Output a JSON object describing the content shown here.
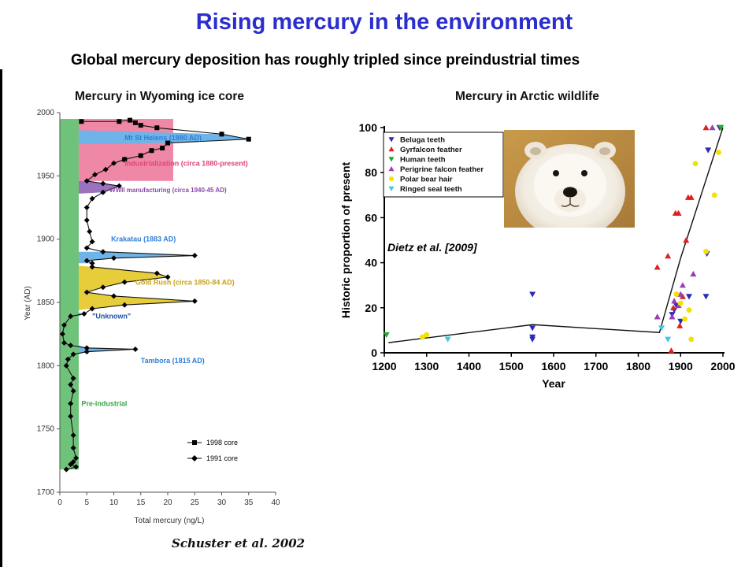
{
  "slide": {
    "title": "Rising mercury in the environment",
    "subtitle": "Global mercury deposition has roughly tripled since preindustrial times",
    "title_color": "#2b2ecf"
  },
  "ice_core": {
    "title": "Mercury in Wyoming ice core",
    "xlabel": "Total mercury (ng/L)",
    "ylabel": "Year (AD)",
    "credit": "Schuster et al. 2002",
    "legend": [
      "1998 core",
      "1991 core"
    ],
    "annotations": [
      {
        "text": "Mt St Helens (1980 AD)",
        "color": "#2f7fd6",
        "year": 1980,
        "x": 12
      },
      {
        "text": "Industrialization (circa 1880-present)",
        "color": "#e0457a",
        "year": 1960,
        "x": 12
      },
      {
        "text": "WWII manufacturing (circa 1940-45 AD)",
        "color": "#8a4aa8",
        "year": 1939,
        "x": 9.2
      },
      {
        "text": "Krakatau (1883 AD)",
        "color": "#2f7fd6",
        "year": 1900,
        "x": 9.5
      },
      {
        "text": "Gold Rush (circa 1850-84 AD)",
        "color": "#c9a316",
        "year": 1866,
        "x": 14
      },
      {
        "text": "\"Unknown\"",
        "color": "#1f4fa0",
        "year": 1839,
        "x": 6
      },
      {
        "text": "Tambora (1815 AD)",
        "color": "#2f7fd6",
        "year": 1804,
        "x": 15
      },
      {
        "text": "Pre-industrial",
        "color": "#3aa34a",
        "year": 1770,
        "x": 4
      }
    ]
  },
  "arctic": {
    "title": "Mercury in Arctic wildlife",
    "credit": "Dietz et al. [2009]"
  },
  "chart_data": [
    {
      "type": "line",
      "title": "Mercury in Wyoming ice core",
      "xlabel": "Total mercury (ng/L)",
      "ylabel": "Year (AD)",
      "xlim": [
        0,
        40
      ],
      "ylim": [
        1700,
        2000
      ],
      "xticks": [
        0,
        5,
        10,
        15,
        20,
        25,
        30,
        35,
        40
      ],
      "yticks": [
        1700,
        1750,
        1800,
        1850,
        1900,
        1950,
        2000
      ],
      "baseline": 3.5,
      "series": [
        {
          "name": "1998 core",
          "points": [
            [
              4,
              1993
            ],
            [
              11,
              1993
            ],
            [
              13,
              1994
            ],
            [
              14,
              1992
            ],
            [
              15,
              1990
            ],
            [
              18,
              1988
            ],
            [
              30,
              1983
            ],
            [
              35,
              1979
            ],
            [
              20,
              1976
            ],
            [
              19,
              1972
            ],
            [
              17,
              1970
            ],
            [
              15,
              1966
            ],
            [
              12,
              1963
            ]
          ]
        },
        {
          "name": "1991 core",
          "points": [
            [
              12,
              1963
            ],
            [
              10,
              1960
            ],
            [
              8.5,
              1955
            ],
            [
              6.5,
              1951
            ],
            [
              5,
              1946
            ],
            [
              8,
              1944
            ],
            [
              11,
              1942
            ],
            [
              8,
              1937
            ],
            [
              6,
              1932
            ],
            [
              5,
              1925
            ],
            [
              5,
              1915
            ],
            [
              5.5,
              1906
            ],
            [
              6,
              1898
            ],
            [
              5,
              1893
            ],
            [
              8,
              1890
            ],
            [
              25,
              1887
            ],
            [
              10,
              1885
            ],
            [
              5,
              1883
            ],
            [
              6,
              1881
            ],
            [
              6,
              1878
            ],
            [
              18,
              1873
            ],
            [
              20,
              1870
            ],
            [
              12,
              1866
            ],
            [
              8,
              1862
            ],
            [
              5,
              1858
            ],
            [
              10,
              1855
            ],
            [
              25,
              1851
            ],
            [
              12,
              1848
            ],
            [
              6,
              1845
            ],
            [
              4.5,
              1841
            ],
            [
              2,
              1839
            ],
            [
              0.8,
              1832
            ],
            [
              0.5,
              1825
            ],
            [
              0.8,
              1818
            ],
            [
              2,
              1816
            ],
            [
              5,
              1814
            ],
            [
              14,
              1813
            ],
            [
              5,
              1811
            ],
            [
              2.5,
              1809
            ],
            [
              1.5,
              1805
            ],
            [
              1.2,
              1800
            ],
            [
              2.5,
              1790
            ],
            [
              2.0,
              1785
            ],
            [
              2.5,
              1780
            ],
            [
              2.0,
              1770
            ],
            [
              2.0,
              1760
            ],
            [
              2.5,
              1745
            ],
            [
              2.5,
              1735
            ],
            [
              3.0,
              1727
            ],
            [
              2.5,
              1724
            ],
            [
              2.0,
              1722
            ],
            [
              3.0,
              1720
            ],
            [
              1.2,
              1718
            ]
          ]
        }
      ]
    },
    {
      "type": "scatter",
      "title": "Mercury in Arctic wildlife",
      "xlabel": "Year",
      "ylabel": "Historic proportion of present",
      "xlim": [
        1200,
        2000
      ],
      "ylim": [
        0,
        100
      ],
      "xticks": [
        1200,
        1300,
        1400,
        1500,
        1600,
        1700,
        1800,
        1900,
        2000
      ],
      "yticks": [
        0,
        20,
        40,
        60,
        80,
        100
      ],
      "trend_line": [
        [
          1210,
          4.5
        ],
        [
          1550,
          12.5
        ],
        [
          1850,
          9
        ],
        [
          1900,
          42
        ],
        [
          2000,
          100
        ]
      ],
      "series": [
        {
          "name": "Beluga teeth",
          "color": "#2b2bb5",
          "marker": "triangle-down",
          "points": [
            [
              1550,
              26
            ],
            [
              1550,
              11
            ],
            [
              1550,
              7
            ],
            [
              1550,
              6
            ],
            [
              1880,
              17
            ],
            [
              1885,
              19
            ],
            [
              1890,
              21
            ],
            [
              1900,
              14
            ],
            [
              1920,
              25
            ],
            [
              1960,
              25
            ],
            [
              1962,
              44
            ],
            [
              1965,
              90
            ],
            [
              1992,
              100
            ]
          ]
        },
        {
          "name": "Gyrfalcon feather",
          "color": "#e02020",
          "marker": "triangle-up",
          "points": [
            [
              1845,
              38
            ],
            [
              1870,
              43
            ],
            [
              1878,
              1
            ],
            [
              1883,
              20
            ],
            [
              1888,
              62
            ],
            [
              1895,
              62
            ],
            [
              1898,
              12
            ],
            [
              1905,
              25
            ],
            [
              1913,
              50
            ],
            [
              1918,
              69
            ],
            [
              1925,
              69
            ],
            [
              1960,
              100
            ]
          ]
        },
        {
          "name": "Human teeth",
          "color": "#22a830",
          "marker": "triangle-down",
          "points": [
            [
              1205,
              8
            ],
            [
              1995,
              100
            ]
          ]
        },
        {
          "name": "Perigrine falcon feather",
          "color": "#9b3db5",
          "marker": "triangle-up",
          "points": [
            [
              1845,
              16
            ],
            [
              1880,
              16
            ],
            [
              1885,
              23
            ],
            [
              1895,
              21
            ],
            [
              1900,
              26
            ],
            [
              1905,
              30
            ],
            [
              1930,
              35
            ],
            [
              1975,
              100
            ]
          ]
        },
        {
          "name": "Polar bear hair",
          "color": "#f2e200",
          "marker": "circle",
          "points": [
            [
              1290,
              7
            ],
            [
              1300,
              8
            ],
            [
              1890,
              26
            ],
            [
              1900,
              22
            ],
            [
              1910,
              15
            ],
            [
              1920,
              19
            ],
            [
              1925,
              6
            ],
            [
              1935,
              84
            ],
            [
              1960,
              45
            ],
            [
              1980,
              70
            ],
            [
              1990,
              89
            ]
          ]
        },
        {
          "name": "Ringed seal teeth",
          "color": "#3fc8e8",
          "marker": "triangle-down",
          "points": [
            [
              1350,
              6
            ],
            [
              1855,
              11
            ],
            [
              1870,
              6
            ]
          ]
        }
      ]
    }
  ]
}
